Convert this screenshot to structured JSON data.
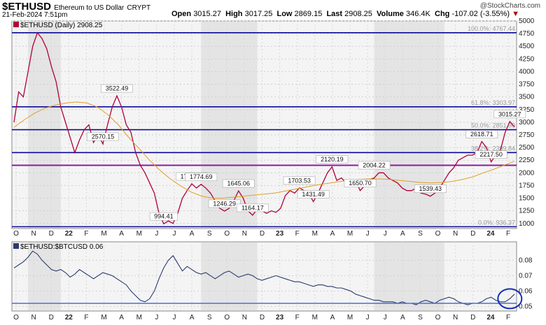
{
  "header": {
    "symbol": "$ETHUSD",
    "name": "Ethereum to US Dollar",
    "exchange": "CRYPT",
    "date": "21-Feb-2024 7:51pm",
    "open_label": "Open",
    "open": "3015.27",
    "high_label": "High",
    "high": "3017.25",
    "low_label": "Low",
    "low": "2869.15",
    "last_label": "Last",
    "last": "2908.25",
    "volume_label": "Volume",
    "volume": "346.4K",
    "chg_label": "Chg",
    "chg": "-107.02 (-3.55%)",
    "copyright": "@StockCharts.com"
  },
  "chart_data": [
    {
      "type": "line",
      "legend": "$ETHUSD (Daily) 2908.25",
      "ylim": [
        900,
        5000
      ],
      "y_ticks": [
        1000,
        1250,
        1500,
        1750,
        2000,
        2250,
        2500,
        2750,
        3000,
        3250,
        3500,
        3750,
        4000,
        4250,
        4500,
        4750,
        5000
      ],
      "x_labels": [
        "O",
        "N",
        "D",
        "22",
        "F",
        "M",
        "A",
        "M",
        "J",
        "J",
        "A",
        "S",
        "O",
        "N",
        "D",
        "23",
        "F",
        "M",
        "A",
        "M",
        "J",
        "J",
        "A",
        "S",
        "O",
        "N",
        "D",
        "24",
        "F"
      ],
      "series": [
        {
          "color": "#b0003a",
          "values": [
            3000,
            3600,
            3500,
            4000,
            4500,
            4767,
            4650,
            4450,
            4100,
            3800,
            3300,
            3000,
            2700,
            2400,
            2650,
            2850,
            2950,
            2600,
            2750,
            2570,
            2950,
            3300,
            3522,
            3300,
            2950,
            2800,
            2400,
            2150,
            2000,
            1800,
            1600,
            1200,
            994,
            1050,
            1000,
            1200,
            1500,
            1650,
            1784,
            1700,
            1774,
            1700,
            1600,
            1450,
            1300,
            1246,
            1300,
            1450,
            1645,
            1500,
            1250,
            1164,
            1280,
            1250,
            1200,
            1250,
            1220,
            1300,
            1550,
            1650,
            1600,
            1703,
            1650,
            1600,
            1431,
            1600,
            1800,
            2000,
            2120,
            1850,
            1900,
            1800,
            1800,
            1850,
            1650,
            1750,
            1870,
            1900,
            2000,
            2000,
            1900,
            1850,
            1800,
            1700,
            1650,
            1650,
            1700,
            1600,
            1580,
            1539,
            1600,
            1700,
            1850,
            2000,
            2100,
            2250,
            2300,
            2350,
            2350,
            2400,
            2618,
            2500,
            2217,
            2350,
            2450,
            2800,
            3015,
            2908
          ]
        },
        {
          "color": "#e0a020",
          "values": [
            2900,
            3050,
            3180,
            3280,
            3340,
            3380,
            3400,
            3380,
            3300,
            3150,
            2950,
            2700,
            2480,
            2250,
            2050,
            1880,
            1740,
            1620,
            1540,
            1500,
            1500,
            1520,
            1540,
            1560,
            1580,
            1600,
            1640,
            1680,
            1720,
            1760,
            1790,
            1820,
            1850,
            1870,
            1880,
            1880,
            1870,
            1850,
            1830,
            1810,
            1800,
            1810,
            1830,
            1870,
            1920,
            2000,
            2070,
            2150,
            2230
          ]
        }
      ],
      "annotations": [
        {
          "text": "3522.49",
          "x": 22,
          "y": 3522
        },
        {
          "text": "2570.15",
          "x": 19,
          "y": 2570
        },
        {
          "text": "994.41",
          "x": 32,
          "y": 994
        },
        {
          "text": "1784.23",
          "x": 38,
          "y": 1784
        },
        {
          "text": "1774.69",
          "x": 40,
          "y": 1774
        },
        {
          "text": "1246.29",
          "x": 45,
          "y": 1246
        },
        {
          "text": "1645.06",
          "x": 48,
          "y": 1645
        },
        {
          "text": "1164.17",
          "x": 51,
          "y": 1164
        },
        {
          "text": "1703.53",
          "x": 61,
          "y": 1703
        },
        {
          "text": "1431.49",
          "x": 64,
          "y": 1431
        },
        {
          "text": "2120.19",
          "x": 68,
          "y": 2120
        },
        {
          "text": "1650.70",
          "x": 74,
          "y": 1650
        },
        {
          "text": "2004.22",
          "x": 77,
          "y": 2004
        },
        {
          "text": "1539.43",
          "x": 89,
          "y": 1539
        },
        {
          "text": "2618.71",
          "x": 100,
          "y": 2618
        },
        {
          "text": "2217.50",
          "x": 102,
          "y": 2217
        },
        {
          "text": "3015.27",
          "x": 106,
          "y": 3015
        }
      ],
      "fib_levels": [
        {
          "label": "100.0%: 4767.44",
          "value": 4767.44
        },
        {
          "label": "61.8%: 3303.97",
          "value": 3303.97
        },
        {
          "label": "50.0%: 2851.90",
          "value": 2851.9
        },
        {
          "label": "38.2%: 2399.84",
          "value": 2399.84
        },
        {
          "label": "0.0%: 936.37",
          "value": 936.37
        }
      ],
      "support_level": 2150,
      "highlighted_bands": [
        [
          3,
          10
        ],
        [
          40,
          52
        ],
        [
          77,
          92
        ]
      ]
    },
    {
      "type": "line",
      "legend": "$ETHUSD:$BTCUSD 0.06",
      "ylim": [
        0.047,
        0.092
      ],
      "y_ticks": [
        0.05,
        0.06,
        0.07,
        0.08
      ],
      "series": [
        {
          "color": "#2b3a6e",
          "values": [
            0.075,
            0.077,
            0.079,
            0.082,
            0.086,
            0.084,
            0.08,
            0.077,
            0.074,
            0.073,
            0.074,
            0.072,
            0.069,
            0.071,
            0.074,
            0.072,
            0.07,
            0.068,
            0.07,
            0.072,
            0.071,
            0.07,
            0.068,
            0.066,
            0.064,
            0.06,
            0.057,
            0.054,
            0.053,
            0.055,
            0.06,
            0.068,
            0.075,
            0.08,
            0.083,
            0.078,
            0.073,
            0.076,
            0.074,
            0.072,
            0.071,
            0.072,
            0.07,
            0.068,
            0.07,
            0.072,
            0.073,
            0.071,
            0.069,
            0.07,
            0.071,
            0.07,
            0.068,
            0.067,
            0.068,
            0.069,
            0.07,
            0.069,
            0.068,
            0.067,
            0.066,
            0.066,
            0.065,
            0.064,
            0.063,
            0.064,
            0.064,
            0.063,
            0.063,
            0.062,
            0.062,
            0.061,
            0.06,
            0.058,
            0.057,
            0.056,
            0.055,
            0.054,
            0.054,
            0.053,
            0.053,
            0.053,
            0.052,
            0.053,
            0.052,
            0.052,
            0.051,
            0.053,
            0.054,
            0.053,
            0.052,
            0.054,
            0.055,
            0.056,
            0.055,
            0.053,
            0.052,
            0.051,
            0.052,
            0.052,
            0.053,
            0.055,
            0.056,
            0.054,
            0.053,
            0.053,
            0.055,
            0.058
          ]
        }
      ],
      "support_level": 0.052
    }
  ]
}
